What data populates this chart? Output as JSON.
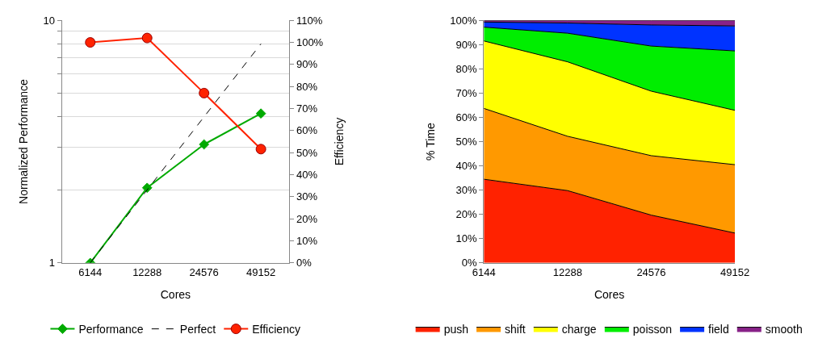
{
  "chart_data": [
    {
      "type": "line",
      "categories": [
        "6144",
        "12288",
        "24576",
        "49152"
      ],
      "xlabel": "Cores",
      "ylabel": "Normalized Performance",
      "y2label": "Efficiency",
      "log": "y",
      "ylim": [
        1,
        10
      ],
      "yticks": [
        1,
        {
          "value": 2,
          "label": null
        },
        {
          "value": 3,
          "label": null
        },
        {
          "value": 4,
          "label": null
        },
        {
          "value": 5,
          "label": null
        },
        {
          "value": 6,
          "label": null
        },
        {
          "value": 7,
          "label": null
        },
        {
          "value": 8,
          "label": null
        },
        {
          "value": 9,
          "label": null
        },
        10
      ],
      "y2lim": [
        0,
        110
      ],
      "y2ticks": [
        {
          "value": 0,
          "label": "0%"
        },
        {
          "value": 10,
          "label": "10%"
        },
        {
          "value": 20,
          "label": "20%"
        },
        {
          "value": 30,
          "label": "30%"
        },
        {
          "value": 40,
          "label": "40%"
        },
        {
          "value": 50,
          "label": "50%"
        },
        {
          "value": 60,
          "label": "60%"
        },
        {
          "value": 70,
          "label": "70%"
        },
        {
          "value": 80,
          "label": "80%"
        },
        {
          "value": 90,
          "label": "90%"
        },
        {
          "value": 100,
          "label": "100%"
        },
        {
          "value": 110,
          "label": "110%"
        }
      ],
      "grid": "y",
      "legend": "bottom",
      "series": [
        {
          "name": "Performance",
          "color": "#00aa00",
          "marker": "diamond",
          "line_style": "solid",
          "values": [
            1,
            2.04,
            3.08,
            4.13
          ]
        },
        {
          "name": "Perfect",
          "color": "#000000",
          "marker": "none",
          "line_style": "dashed",
          "values": [
            1,
            2,
            4,
            8
          ]
        },
        {
          "name": "Efficiency",
          "color": "#ff2200",
          "marker": "circle",
          "line_style": "solid",
          "axis": "y2",
          "values": [
            100,
            102,
            77,
            51.6
          ]
        }
      ]
    },
    {
      "type": "area",
      "stacked": true,
      "categories": [
        "6144",
        "12288",
        "24576",
        "49152"
      ],
      "xlabel": "Cores",
      "ylabel": "% Time",
      "ylim": [
        0,
        100
      ],
      "yticks": [
        {
          "value": 0,
          "label": "0%"
        },
        {
          "value": 10,
          "label": "10%"
        },
        {
          "value": 20,
          "label": "20%"
        },
        {
          "value": 30,
          "label": "30%"
        },
        {
          "value": 40,
          "label": "40%"
        },
        {
          "value": 50,
          "label": "50%"
        },
        {
          "value": 60,
          "label": "60%"
        },
        {
          "value": 70,
          "label": "70%"
        },
        {
          "value": 80,
          "label": "80%"
        },
        {
          "value": 90,
          "label": "90%"
        },
        {
          "value": 100,
          "label": "100%"
        }
      ],
      "grid": false,
      "legend": "bottom",
      "series": [
        {
          "name": "push",
          "color": "#ff2200",
          "values": [
            34.5,
            29.8,
            19.7,
            12.3
          ]
        },
        {
          "name": "shift",
          "color": "#ff9900",
          "values": [
            29.2,
            22.4,
            24.5,
            28.2
          ]
        },
        {
          "name": "charge",
          "color": "#ffff00",
          "values": [
            27.8,
            30.7,
            26.6,
            22.4
          ]
        },
        {
          "name": "poisson",
          "color": "#00ee00",
          "values": [
            5.7,
            11.8,
            18.6,
            24.5
          ]
        },
        {
          "name": "field",
          "color": "#0033ff",
          "values": [
            2.1,
            4.2,
            8.7,
            10.3
          ]
        },
        {
          "name": "smooth",
          "color": "#882288",
          "values": [
            0.7,
            1.1,
            1.9,
            2.3
          ]
        }
      ]
    }
  ]
}
